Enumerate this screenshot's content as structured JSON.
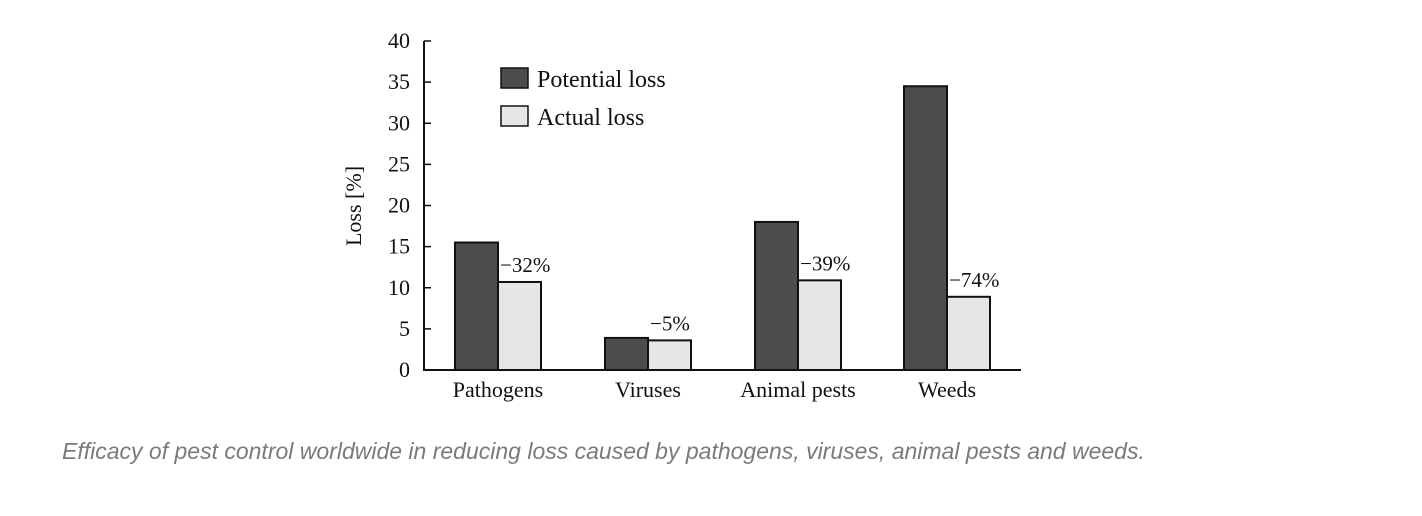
{
  "colors": {
    "potential": "#4d4d4d",
    "actual": "#e6e6e6",
    "axis": "#111111",
    "caption": "#7a7a7a"
  },
  "chart_data": {
    "type": "bar",
    "title": "",
    "xlabel": "",
    "ylabel": "Loss [%]",
    "ylim": [
      0,
      40
    ],
    "yticks": [
      0,
      5,
      10,
      15,
      20,
      25,
      30,
      35,
      40
    ],
    "categories": [
      "Pathogens",
      "Viruses",
      "Animal pests",
      "Weeds"
    ],
    "series": [
      {
        "name": "Potential loss",
        "values": [
          15.5,
          3.9,
          18.0,
          34.5
        ]
      },
      {
        "name": "Actual loss",
        "values": [
          10.7,
          3.6,
          10.9,
          8.9
        ]
      }
    ],
    "annotations": [
      "−32%",
      "−5%",
      "−39%",
      "−74%"
    ],
    "legend": {
      "position": "top-left"
    }
  },
  "caption": "Efficacy of pest control worldwide in reducing loss caused by pathogens, viruses, animal pests and weeds."
}
